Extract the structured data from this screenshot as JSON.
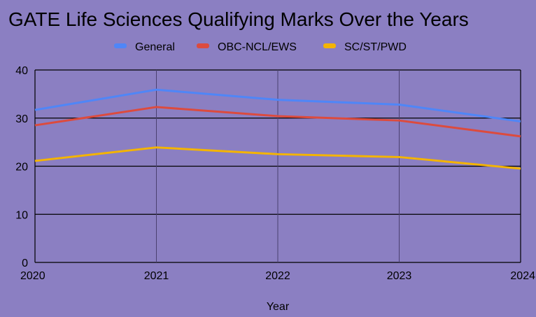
{
  "chart_data": {
    "type": "line",
    "title": "GATE Life Sciences Qualifying Marks Over the Years",
    "xlabel": "Year",
    "ylabel": "",
    "categories": [
      "2020",
      "2021",
      "2022",
      "2023",
      "2024"
    ],
    "ylim": [
      0,
      40
    ],
    "yticks": [
      "0",
      "10",
      "20",
      "30",
      "40"
    ],
    "grid": true,
    "legend_position": "top",
    "series": [
      {
        "name": "General",
        "color": "#4f86f7",
        "values": [
          31.7,
          35.9,
          33.8,
          32.8,
          29.3
        ]
      },
      {
        "name": "OBC-NCL/EWS",
        "color": "#dc4b3e",
        "values": [
          28.5,
          32.3,
          30.4,
          29.5,
          26.2
        ]
      },
      {
        "name": "SC/ST/PWD",
        "color": "#f4b400",
        "values": [
          21.1,
          23.9,
          22.5,
          21.9,
          19.5
        ]
      }
    ]
  }
}
